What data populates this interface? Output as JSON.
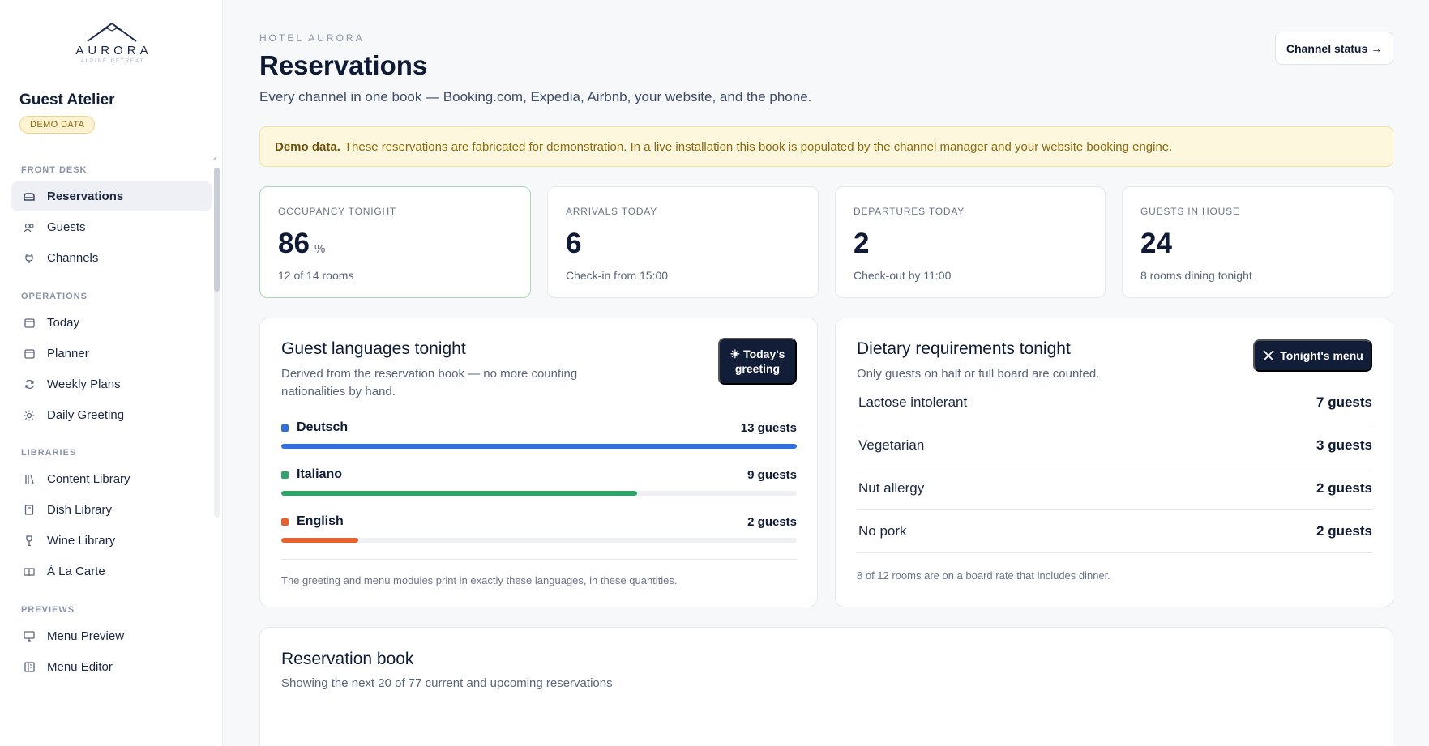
{
  "brand": {
    "name": "AURORA",
    "tagline": "ALPINE RETREAT"
  },
  "workspace": {
    "name": "Guest Atelier",
    "badge": "DEMO DATA"
  },
  "sidebar": {
    "sections": [
      {
        "title": "FRONT DESK",
        "items": [
          {
            "label": "Reservations",
            "icon": "bed-icon",
            "active": true
          },
          {
            "label": "Guests",
            "icon": "users-icon"
          },
          {
            "label": "Channels",
            "icon": "plug-icon"
          }
        ]
      },
      {
        "title": "OPERATIONS",
        "items": [
          {
            "label": "Today",
            "icon": "calendar-icon"
          },
          {
            "label": "Planner",
            "icon": "calendar-icon"
          },
          {
            "label": "Weekly Plans",
            "icon": "refresh-icon"
          },
          {
            "label": "Daily Greeting",
            "icon": "sun-icon"
          }
        ]
      },
      {
        "title": "LIBRARIES",
        "items": [
          {
            "label": "Content Library",
            "icon": "library-icon"
          },
          {
            "label": "Dish Library",
            "icon": "book-icon"
          },
          {
            "label": "Wine Library",
            "icon": "wine-glass-icon"
          },
          {
            "label": "À La Carte",
            "icon": "open-book-icon"
          }
        ]
      },
      {
        "title": "PREVIEWS",
        "items": [
          {
            "label": "Menu Preview",
            "icon": "monitor-icon"
          },
          {
            "label": "Menu Editor",
            "icon": "layout-icon"
          }
        ]
      }
    ]
  },
  "header": {
    "eyebrow": "HOTEL AURORA",
    "title": "Reservations",
    "subtitle": "Every channel in one book — Booking.com, Expedia, Airbnb, your website, and the phone.",
    "channel_button": "Channel status →"
  },
  "alert": {
    "strong": "Demo data.",
    "text": "These reservations are fabricated for demonstration. In a live installation this book is populated by the channel manager and your website booking engine."
  },
  "stats": [
    {
      "label": "OCCUPANCY TONIGHT",
      "value": "86",
      "unit": "%",
      "note": "12 of 14 rooms"
    },
    {
      "label": "ARRIVALS TODAY",
      "value": "6",
      "unit": "",
      "note": "Check-in from 15:00"
    },
    {
      "label": "DEPARTURES TODAY",
      "value": "2",
      "unit": "",
      "note": "Check-out by 11:00"
    },
    {
      "label": "GUESTS IN HOUSE",
      "value": "24",
      "unit": "",
      "note": "8 rooms dining tonight"
    }
  ],
  "languages": {
    "title": "Guest languages tonight",
    "subtitle_line1": "Derived from the reservation book — no more counting",
    "subtitle_line2": "nationalities by hand.",
    "button_line1": "☀ Today's",
    "button_line2": "greeting",
    "rows": [
      {
        "name": "Deutsch",
        "count": "13 guests",
        "guests": 13,
        "share": 1.0,
        "color": "#2f6fde"
      },
      {
        "name": "Italiano",
        "count": "9 guests",
        "guests": 9,
        "share": 0.69,
        "color": "#2ea36a"
      },
      {
        "name": "English",
        "count": "2 guests",
        "guests": 2,
        "share": 0.15,
        "color": "#e8622e"
      }
    ],
    "footer": "The greeting and menu modules print in exactly these languages, in these quantities."
  },
  "dietary": {
    "title": "Dietary requirements tonight",
    "subtitle": "Only guests on half or full board are counted.",
    "button": "Tonight's menu",
    "rows": [
      {
        "name": "Lactose intolerant",
        "count": "7 guests"
      },
      {
        "name": "Vegetarian",
        "count": "3 guests"
      },
      {
        "name": "Nut allergy",
        "count": "2 guests"
      },
      {
        "name": "No pork",
        "count": "2 guests"
      }
    ],
    "footer": "8 of 12 rooms are on a board rate that includes dinner."
  },
  "book": {
    "title": "Reservation book",
    "subtitle": "Showing the next 20 of 77 current and upcoming reservations"
  }
}
